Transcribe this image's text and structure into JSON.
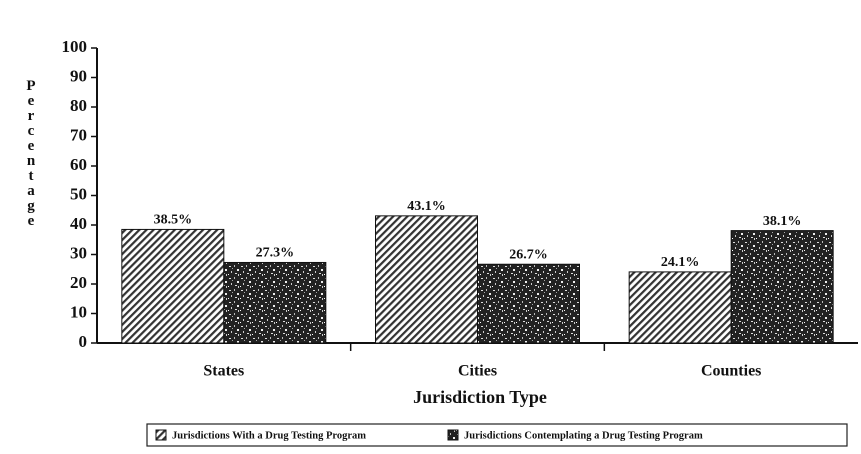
{
  "chart_data": {
    "type": "bar",
    "x_label": "Jurisdiction Type",
    "y_label": "Percentage",
    "categories": [
      "States",
      "Cities",
      "Counties"
    ],
    "series": [
      {
        "name": "Jurisdictions With a Drug Testing Program",
        "color": "#333333",
        "pattern": "hatch",
        "values": [
          38.5,
          43.1,
          24.1
        ],
        "value_labels": [
          "38.5%",
          "43.1%",
          "24.1%"
        ]
      },
      {
        "name": "Jurisdictions Contemplating a Drug Testing Program",
        "color": "#222222",
        "pattern": "speckle",
        "values": [
          27.3,
          26.7,
          38.1
        ],
        "value_labels": [
          "27.3%",
          "26.7%",
          "38.1%"
        ]
      }
    ],
    "ylim": [
      0,
      100
    ],
    "yticks": [
      0,
      10,
      20,
      30,
      40,
      50,
      60,
      70,
      80,
      90,
      100
    ],
    "legend": "bottom"
  }
}
